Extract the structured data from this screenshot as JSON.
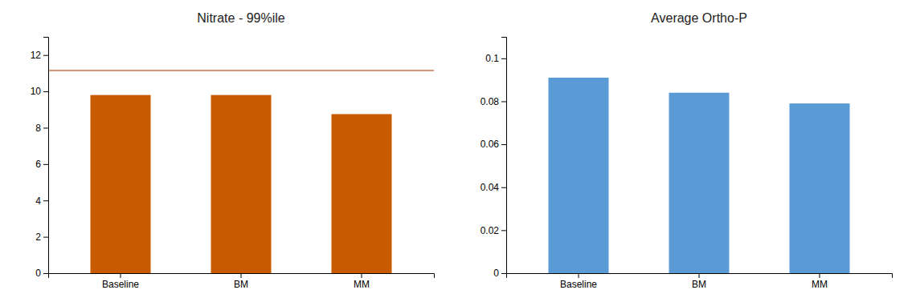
{
  "chart_data": [
    {
      "type": "bar",
      "title": "Nitrate - 99%ile",
      "categories": [
        "Baseline",
        "BM",
        "MM"
      ],
      "values": [
        9.8,
        9.8,
        8.75
      ],
      "color": "#C85A00",
      "reference_line": {
        "value": 11.15,
        "color": "#C87050"
      },
      "ylim": [
        0,
        13
      ],
      "yticks": [
        0,
        2,
        4,
        6,
        8,
        10,
        12
      ],
      "grid": false
    },
    {
      "type": "bar",
      "title": "Average Ortho-P",
      "categories": [
        "Baseline",
        "BM",
        "MM"
      ],
      "values": [
        0.091,
        0.084,
        0.079
      ],
      "color": "#5B9BD5",
      "ylim": [
        0,
        0.11
      ],
      "yticks": [
        0,
        0.02,
        0.04,
        0.06,
        0.08,
        0.1
      ],
      "grid": false
    }
  ]
}
